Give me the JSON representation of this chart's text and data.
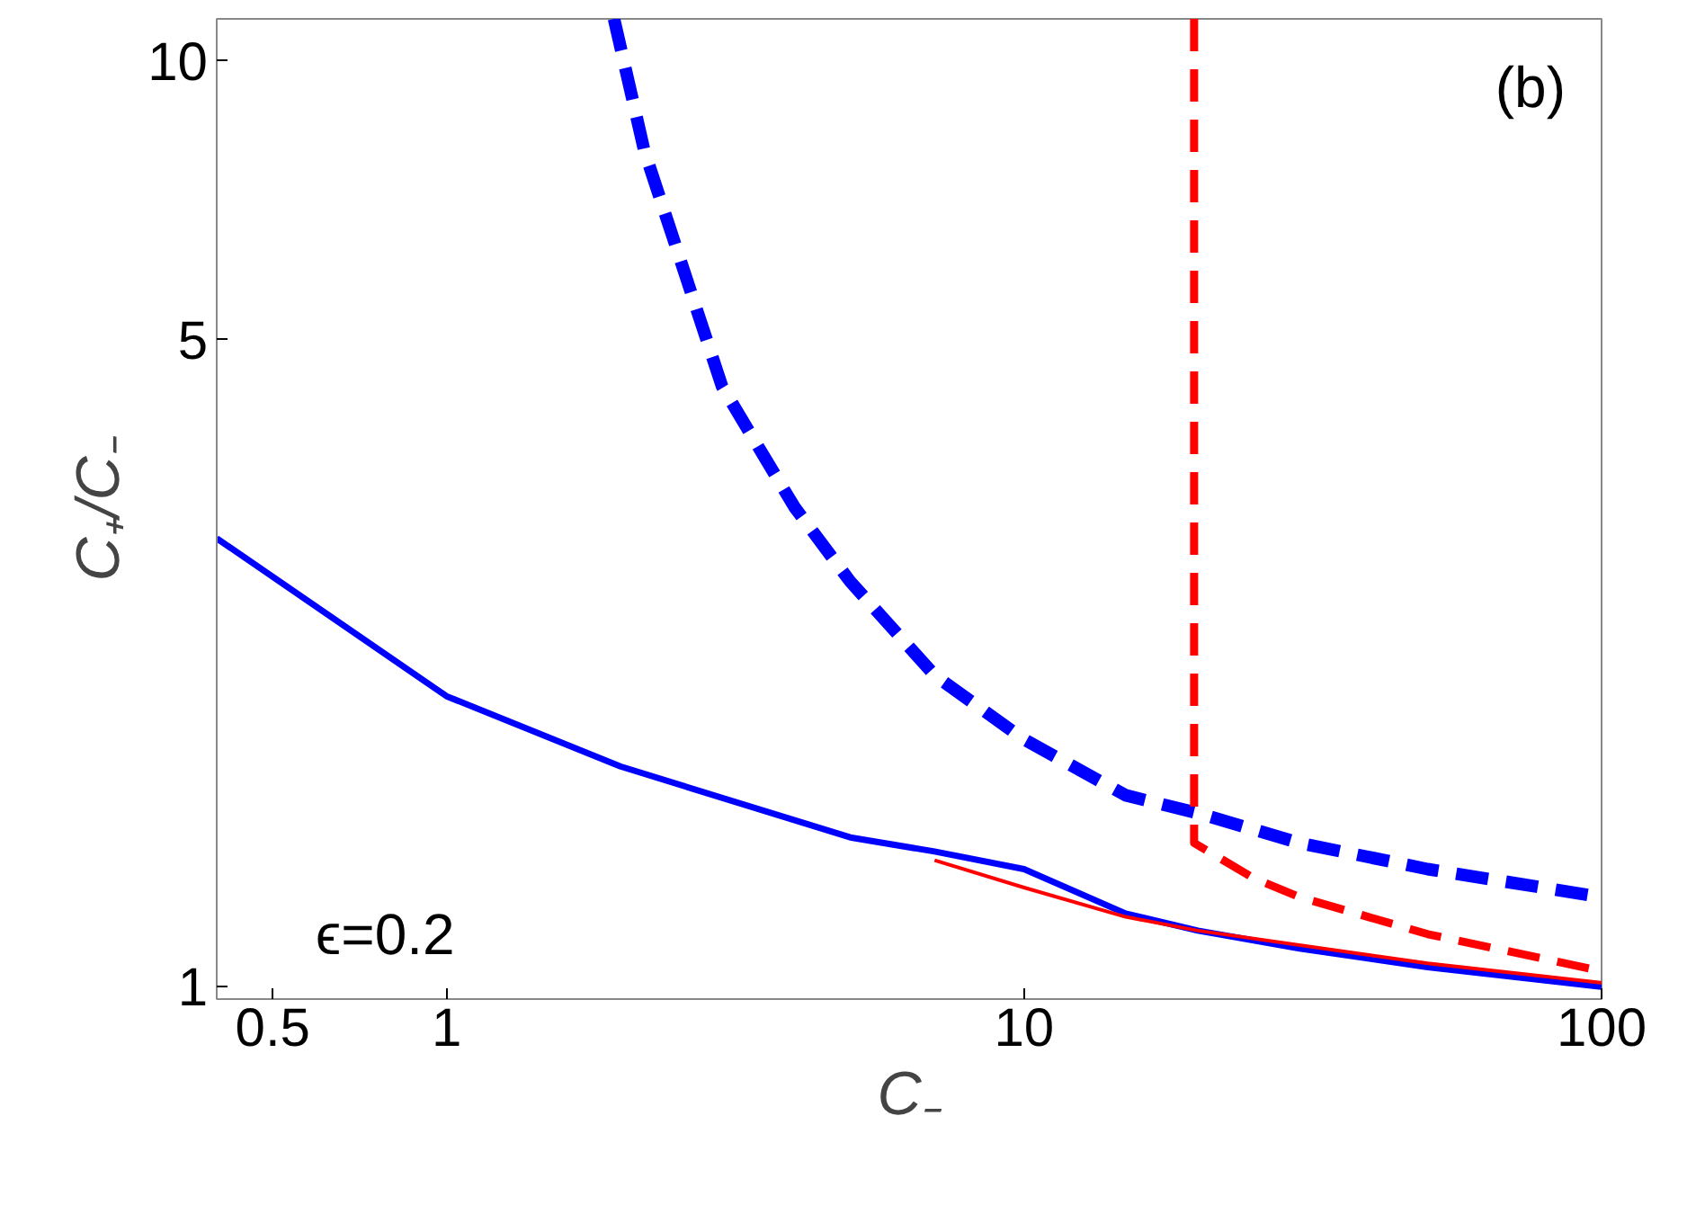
{
  "chart_data": {
    "type": "line",
    "xlabel": "C₋",
    "ylabel": "C₊/C₋",
    "log": "xy",
    "grid": false,
    "xlim": [
      0.4,
      100
    ],
    "ylim": [
      0.97,
      11.1
    ],
    "xticks": [
      0.5,
      1,
      10,
      100
    ],
    "yticks": [
      1,
      5,
      10
    ],
    "annotations": [
      "(b)",
      "ϵ=0.2"
    ],
    "series": [
      {
        "color": "#0000ff",
        "line_style": "solid",
        "x": [
          0.4,
          1,
          2,
          5,
          7,
          10,
          15,
          20,
          30,
          50,
          100
        ],
        "values": [
          3.05,
          2.06,
          1.73,
          1.45,
          1.4,
          1.34,
          1.2,
          1.15,
          1.1,
          1.05,
          1.0
        ]
      },
      {
        "color": "#ff0000",
        "line_style": "solid",
        "x": [
          7,
          10,
          15,
          20,
          50,
          100
        ],
        "values": [
          1.37,
          1.28,
          1.19,
          1.15,
          1.06,
          1.01
        ]
      },
      {
        "color": "#0000ff",
        "line_style": "dashed",
        "x": [
          1.95,
          2.2,
          3,
          4,
          5,
          7,
          10,
          15,
          20,
          30,
          50,
          100
        ],
        "values": [
          11.1,
          8,
          4.45,
          3.3,
          2.74,
          2.17,
          1.85,
          1.61,
          1.54,
          1.43,
          1.34,
          1.25
        ]
      },
      {
        "color": "#ff0000",
        "line_style": "dashed",
        "x": [
          19.7,
          19.7,
          25,
          30,
          50,
          100
        ],
        "values": [
          11.1,
          1.43,
          1.31,
          1.25,
          1.14,
          1.04
        ]
      }
    ]
  }
}
